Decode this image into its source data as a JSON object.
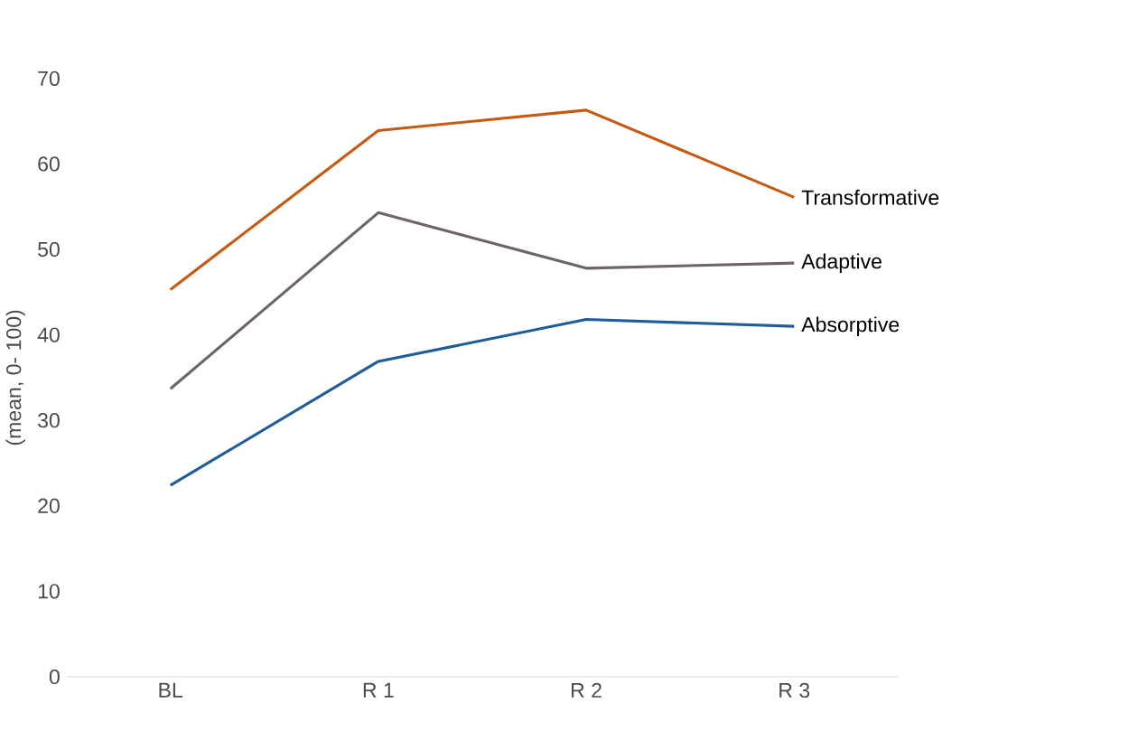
{
  "chart_data": {
    "type": "line",
    "ylabel": "(mean, 0- 100)",
    "categories": [
      "BL",
      "R 1",
      "R 2",
      "R 3"
    ],
    "series": [
      {
        "name": "Transformative",
        "color": "#c55a11",
        "values": [
          45.3,
          63.9,
          66.3,
          56.1
        ]
      },
      {
        "name": "Adaptive",
        "color": "#6e6466",
        "values": [
          33.7,
          54.3,
          47.8,
          48.4
        ]
      },
      {
        "name": "Absorptive",
        "color": "#1f5c99",
        "values": [
          22.4,
          36.9,
          41.8,
          41.0
        ]
      }
    ],
    "ylim": [
      0,
      70
    ],
    "yticks": [
      0,
      10,
      20,
      30,
      40,
      50,
      60,
      70
    ],
    "grid": false,
    "marker": "none",
    "line_style": "solid"
  }
}
